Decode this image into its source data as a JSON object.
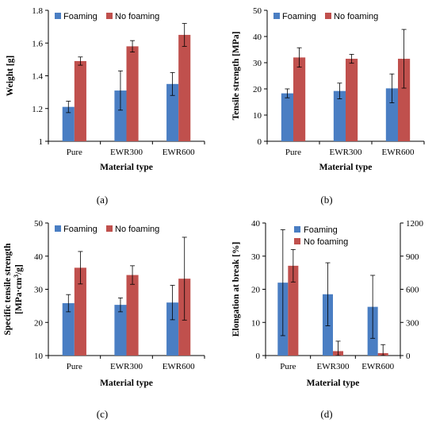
{
  "colors": {
    "foaming": "#4a7ec3",
    "no_foaming": "#c0504d",
    "axis": "#000000",
    "error": "#000000"
  },
  "chart_data": [
    {
      "panel": "(a)",
      "type": "bar",
      "categories": [
        "Pure",
        "EWR300",
        "EWR600"
      ],
      "xlabel": "Material type",
      "ylabel": "Weight [g]",
      "ylim": [
        1,
        1.8
      ],
      "yticks": [
        "1",
        "1.2",
        "1.4",
        "1.6",
        "1.8"
      ],
      "grid": false,
      "legend_position": "top-left",
      "series": [
        {
          "name": "Foaming",
          "values": [
            1.21,
            1.31,
            1.35
          ],
          "errors": [
            0.035,
            0.12,
            0.07
          ]
        },
        {
          "name": "No foaming",
          "values": [
            1.49,
            1.58,
            1.65
          ],
          "errors": [
            0.025,
            0.035,
            0.07
          ]
        }
      ]
    },
    {
      "panel": "(b)",
      "type": "bar",
      "categories": [
        "Pure",
        "EWR300",
        "EWR600"
      ],
      "xlabel": "Material type",
      "ylabel": "Tensile strength [MPa]",
      "ylim": [
        0,
        50
      ],
      "yticks": [
        "0",
        "10",
        "20",
        "30",
        "40",
        "50"
      ],
      "grid": false,
      "legend_position": "top-left",
      "series": [
        {
          "name": "Foaming",
          "values": [
            18.3,
            19.2,
            20.2
          ],
          "errors": [
            1.7,
            3.0,
            5.5
          ]
        },
        {
          "name": "No foaming",
          "values": [
            32.0,
            31.5,
            31.5
          ],
          "errors": [
            3.7,
            1.7,
            11.2
          ]
        }
      ]
    },
    {
      "panel": "(c)",
      "type": "bar",
      "categories": [
        "Pure",
        "EWR300",
        "EWR600"
      ],
      "xlabel": "Material type",
      "ylabel_line1": "Specific tensile strength",
      "ylabel_line2": "[MPa·cm",
      "ylabel_sup": "3",
      "ylabel_line2_end": "/g]",
      "ylim": [
        10,
        50
      ],
      "yticks": [
        "10",
        "20",
        "30",
        "40",
        "50"
      ],
      "grid": false,
      "legend_position": "top-left",
      "series": [
        {
          "name": "Foaming",
          "values": [
            25.8,
            25.3,
            26.0
          ],
          "errors": [
            2.6,
            2.1,
            5.2
          ]
        },
        {
          "name": "No foaming",
          "values": [
            36.5,
            34.3,
            33.2
          ],
          "errors": [
            4.9,
            2.8,
            12.5
          ]
        }
      ]
    },
    {
      "panel": "(d)",
      "type": "bar",
      "categories": [
        "Pure",
        "EWR300",
        "EWR600"
      ],
      "xlabel": "Material type",
      "ylabel": "Elongation at break [%]",
      "ylim": [
        0,
        40
      ],
      "yticks": [
        "0",
        "10",
        "20",
        "30",
        "40"
      ],
      "y2lim": [
        0,
        1200
      ],
      "y2ticks": [
        "0",
        "300",
        "600",
        "900",
        "1200"
      ],
      "grid": false,
      "legend_position": "top-left",
      "series": [
        {
          "name": "Foaming",
          "axis": "left",
          "values": [
            22.0,
            18.5,
            14.7
          ],
          "errors": [
            16.0,
            9.5,
            9.5
          ]
        },
        {
          "name": "No foaming",
          "axis": "right",
          "values": [
            813,
            40,
            22
          ],
          "errors": [
            147,
            90,
            77
          ]
        }
      ]
    }
  ]
}
